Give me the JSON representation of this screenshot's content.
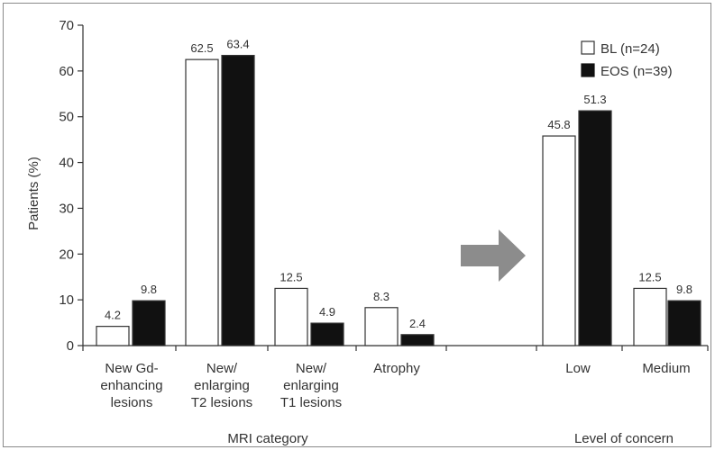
{
  "chart_data": {
    "type": "bar",
    "ylabel": "Patients (%)",
    "ylim": [
      0,
      70
    ],
    "yticks": [
      0,
      10,
      20,
      30,
      40,
      50,
      60,
      70
    ],
    "group_labels": [
      "MRI category",
      "Level of concern"
    ],
    "groups": [
      {
        "name": "MRI category",
        "categories": [
          [
            "New Gd-",
            "enhancing",
            "lesions"
          ],
          [
            "New/",
            "enlarging",
            "T2 lesions"
          ],
          [
            "New/",
            "enlarging",
            "T1 lesions"
          ],
          [
            "Atrophy"
          ]
        ],
        "series": [
          {
            "name": "BL (n=24)",
            "values": [
              4.2,
              62.5,
              12.5,
              8.3
            ]
          },
          {
            "name": "EOS (n=39)",
            "values": [
              9.8,
              63.4,
              4.9,
              2.4
            ]
          }
        ]
      },
      {
        "name": "Level of concern",
        "categories": [
          [
            "Low"
          ],
          [
            "Medium"
          ]
        ],
        "series": [
          {
            "name": "BL (n=24)",
            "values": [
              45.8,
              12.5
            ]
          },
          {
            "name": "EOS (n=39)",
            "values": [
              51.3,
              9.8
            ]
          }
        ]
      }
    ],
    "legend": {
      "placement": "top-right",
      "entries": [
        {
          "label": "BL (n=24)",
          "fill": "#ffffff"
        },
        {
          "label": "EOS (n=39)",
          "fill": "#111111"
        }
      ]
    },
    "arrow_color": "#8c8c8c",
    "grid": false
  }
}
